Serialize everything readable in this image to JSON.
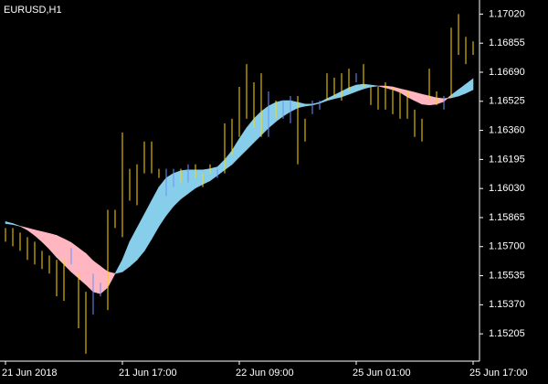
{
  "chart_data": {
    "type": "ohlc-band",
    "title": "EURUSD,H1",
    "categories": [
      "21 Jun 2018",
      null,
      null,
      null,
      null,
      null,
      null,
      null,
      null,
      null,
      null,
      null,
      null,
      null,
      null,
      null,
      "21 Jun 17:00",
      null,
      null,
      null,
      null,
      null,
      null,
      null,
      null,
      null,
      null,
      null,
      null,
      null,
      null,
      null,
      "22 Jun 09:00",
      null,
      null,
      null,
      null,
      null,
      null,
      null,
      null,
      null,
      null,
      null,
      null,
      null,
      null,
      null,
      "25 Jun 01:00",
      null,
      null,
      null,
      null,
      null,
      null,
      null,
      null,
      null,
      null,
      null,
      null,
      null,
      null,
      null,
      "25 Jun 17:00"
    ],
    "high": [
      1.15806,
      1.15806,
      1.1578,
      1.15754,
      1.15728,
      1.15676,
      1.1565,
      1.15625,
      1.15625,
      1.15692,
      1.15547,
      1.15444,
      1.15547,
      1.15495,
      1.15909,
      1.15909,
      1.16348,
      1.16142,
      1.16167,
      1.16297,
      1.16297,
      1.16142,
      1.16142,
      1.16142,
      1.16142,
      1.16167,
      1.16167,
      1.16116,
      1.16167,
      1.16142,
      1.164,
      1.16426,
      1.16607,
      1.16736,
      1.16633,
      1.16684,
      1.16581,
      1.16529,
      1.16529,
      1.16555,
      1.16555,
      1.16426,
      1.16529,
      1.16529,
      1.16684,
      1.16659,
      1.16684,
      1.1671,
      1.16684,
      1.16736,
      1.16607,
      1.16607,
      1.16633,
      1.16607,
      1.16581,
      1.16581,
      1.16478,
      1.16426,
      1.1671,
      1.16581,
      1.16555,
      1.16943,
      1.1702,
      1.16891,
      1.16865
    ],
    "low": [
      1.15728,
      1.15702,
      1.15676,
      1.15625,
      1.15599,
      1.15573,
      1.15547,
      1.15418,
      1.15392,
      1.15599,
      1.15237,
      1.15092,
      1.15314,
      1.15418,
      1.1534,
      1.15806,
      1.15754,
      1.15961,
      1.15935,
      1.16116,
      1.16116,
      1.1609,
      1.15987,
      1.16038,
      1.16064,
      1.16064,
      1.1609,
      1.16038,
      1.16116,
      1.1609,
      1.16116,
      1.16219,
      1.16323,
      1.16426,
      1.16374,
      1.16323,
      1.16323,
      1.16426,
      1.16426,
      1.164,
      1.16167,
      1.16297,
      1.16452,
      1.16478,
      1.16529,
      1.16555,
      1.16529,
      1.16581,
      1.16633,
      1.16607,
      1.16504,
      1.16478,
      1.16478,
      1.16452,
      1.16426,
      1.16426,
      1.16323,
      1.16297,
      1.16529,
      1.16504,
      1.16478,
      1.16555,
      1.16788,
      1.16736,
      1.16788
    ],
    "bar_colors": [
      "#ffd700",
      "#ffd700",
      "#ffd700",
      "#ffd700",
      "#ffd700",
      "#ffd700",
      "#ffd700",
      "#ffd700",
      "#ffd700",
      "#6f8fff",
      "#ffd700",
      "#ffd700",
      "#6f8fff",
      "#6f8fff",
      "#ffd700",
      "#ffd700",
      "#ffd700",
      "#ffd700",
      "#ffd700",
      "#ffd700",
      "#ffd700",
      "#ffd700",
      "#6f8fff",
      "#6f8fff",
      "#ffd700",
      "#6f8fff",
      "#ffd700",
      "#ffd700",
      "#ffd700",
      "#6f8fff",
      "#ffd700",
      "#ffd700",
      "#ffd700",
      "#ffd700",
      "#ffd700",
      "#ffd700",
      "#6f8fff",
      "#ffd700",
      "#6f8fff",
      "#6f8fff",
      "#ffd700",
      "#ffd700",
      "#6f8fff",
      "#6f8fff",
      "#ffd700",
      "#ffd700",
      "#ffd700",
      "#ffd700",
      "#6f8fff",
      "#ffd700",
      "#ffd700",
      "#ffd700",
      "#ffd700",
      "#ffd700",
      "#ffd700",
      "#ffd700",
      "#ffd700",
      "#ffd700",
      "#ffd700",
      "#ffd700",
      "#6f8fff",
      "#ffd700",
      "#ffd700",
      "#ffd700",
      "#ffd700"
    ],
    "fast": [
      1.15842,
      1.15831,
      1.15816,
      1.15795,
      1.15764,
      1.15728,
      1.15687,
      1.1564,
      1.15599,
      1.15557,
      1.15521,
      1.15485,
      1.15444,
      1.15433,
      1.15469,
      1.15547,
      1.15625,
      1.15728,
      1.15806,
      1.15883,
      1.15961,
      1.16038,
      1.1609,
      1.16116,
      1.16131,
      1.16136,
      1.16136,
      1.16136,
      1.16142,
      1.16152,
      1.16193,
      1.16245,
      1.16312,
      1.16374,
      1.16426,
      1.16467,
      1.16498,
      1.16519,
      1.16529,
      1.16529,
      1.16519,
      1.16509,
      1.16509,
      1.16519,
      1.1654,
      1.1656,
      1.16581,
      1.16602,
      1.16617,
      1.16622,
      1.16617,
      1.16612,
      1.16602,
      1.16591,
      1.16576,
      1.1655,
      1.16529,
      1.16509,
      1.16504,
      1.16509,
      1.16524,
      1.1656,
      1.16591,
      1.16622,
      1.16653
    ],
    "slow": [
      1.15831,
      1.15826,
      1.15816,
      1.15806,
      1.15795,
      1.15785,
      1.15775,
      1.15764,
      1.15744,
      1.15723,
      1.15692,
      1.15661,
      1.15619,
      1.15588,
      1.15557,
      1.15547,
      1.15557,
      1.15588,
      1.15625,
      1.15676,
      1.15744,
      1.15816,
      1.15878,
      1.1593,
      1.15971,
      1.16002,
      1.16033,
      1.16054,
      1.16074,
      1.16105,
      1.16136,
      1.16167,
      1.16209,
      1.1625,
      1.16292,
      1.16333,
      1.16374,
      1.1641,
      1.16441,
      1.16467,
      1.16488,
      1.16498,
      1.16504,
      1.16514,
      1.16529,
      1.1654,
      1.1655,
      1.16565,
      1.16581,
      1.16596,
      1.16607,
      1.16612,
      1.16612,
      1.16607,
      1.16596,
      1.16586,
      1.16576,
      1.16565,
      1.16555,
      1.16545,
      1.1654,
      1.16545,
      1.16555,
      1.16571,
      1.16591
    ],
    "band_up_color": "#87ceeb",
    "band_down_color": "#ffb6c1",
    "ylim": [
      1.1505,
      1.171
    ],
    "yticks": [
      1.15205,
      {
        "value": 1.1537,
        "label": "1.15370"
      },
      1.15535,
      {
        "value": 1.157,
        "label": "1.15700"
      },
      1.15865,
      {
        "value": 1.1603,
        "label": "1.16030"
      },
      1.16195,
      {
        "value": 1.1636,
        "label": "1.16360"
      },
      1.16525,
      {
        "value": 1.1669,
        "label": "1.16690"
      },
      1.16855,
      {
        "value": 1.1702,
        "label": "1.17020"
      }
    ]
  }
}
